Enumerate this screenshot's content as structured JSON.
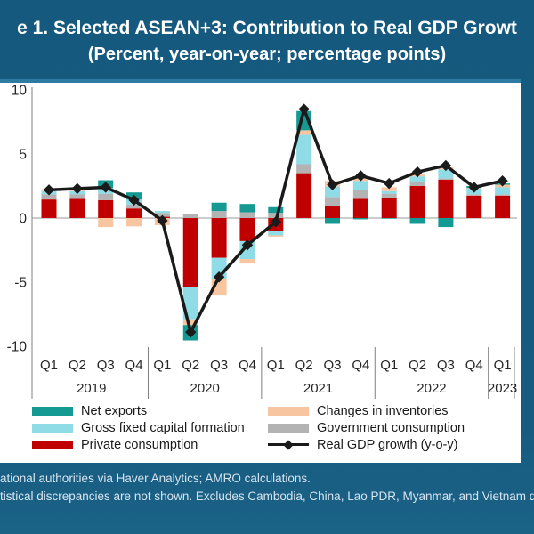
{
  "title": {
    "line1": "e 1. Selected ASEAN+3: Contribution to Real GDP Growt",
    "line2": "(Percent, year-on-year; percentage points)"
  },
  "footer": {
    "line1": "ational authorities via Haver Analytics; AMRO calculations.",
    "line2": "tistical discrepancies are not shown. Excludes Cambodia, China, Lao PDR, Myanmar, and Vietnam du"
  },
  "colors": {
    "slide_background": "#16597e",
    "panel_background": "#ffffff",
    "accent_line": "#2d7ba3",
    "private_consumption": "#c00000",
    "government_consumption": "#b3b3b3",
    "gross_fixed_capital_formation": "#8fdbe6",
    "changes_in_inventories": "#f7c5a0",
    "net_exports": "#159a93",
    "gdp_line": "#1a1a1a",
    "axis_text": "#262626",
    "footer_text": "#d6e4ee"
  },
  "chart_data": {
    "type": "bar",
    "subtype": "stacked-bars-with-line-overlay",
    "categories": [
      "Q1",
      "Q2",
      "Q3",
      "Q4",
      "Q1",
      "Q2",
      "Q3",
      "Q4",
      "Q1",
      "Q2",
      "Q3",
      "Q4",
      "Q1",
      "Q2",
      "Q3",
      "Q4",
      "Q1"
    ],
    "year_groups": [
      {
        "label": "2019",
        "start": 0,
        "end": 3
      },
      {
        "label": "2020",
        "start": 4,
        "end": 7
      },
      {
        "label": "2021",
        "start": 8,
        "end": 11
      },
      {
        "label": "2022",
        "start": 12,
        "end": 15
      },
      {
        "label": "2023",
        "start": 16,
        "end": 16
      }
    ],
    "ylim": [
      -10,
      10
    ],
    "yticks": [
      10,
      5,
      0,
      -5,
      -10
    ],
    "grid": false,
    "legend_position": "bottom",
    "series": [
      {
        "name": "Private consumption",
        "color": "#c00000",
        "values": [
          1.45,
          1.5,
          1.4,
          0.75,
          0.1,
          -5.4,
          -3.1,
          -1.8,
          -1.0,
          3.5,
          0.95,
          1.5,
          1.6,
          2.5,
          3.0,
          1.75,
          1.75
        ]
      },
      {
        "name": "Government consumption",
        "color": "#b3b3b3",
        "values": [
          0.4,
          0.35,
          0.5,
          0.3,
          0.3,
          0.3,
          0.55,
          0.45,
          0.4,
          0.7,
          0.7,
          0.7,
          0.3,
          0.3,
          0.1,
          0.1,
          0.1
        ]
      },
      {
        "name": "Gross fixed capital formation",
        "color": "#8fdbe6",
        "values": [
          0.25,
          0.25,
          0.45,
          0.4,
          0.15,
          -2.5,
          -1.65,
          -1.4,
          -0.35,
          2.3,
          0.8,
          0.7,
          0.2,
          0.45,
          0.7,
          0.45,
          0.55
        ]
      },
      {
        "name": "Changes in inventories",
        "color": "#f7c5a0",
        "values": [
          0.15,
          0.1,
          -0.7,
          -0.65,
          -0.55,
          -0.45,
          -1.3,
          -0.35,
          -0.1,
          0.35,
          0.45,
          0.3,
          0.3,
          0.15,
          0.15,
          0.05,
          0.2
        ]
      },
      {
        "name": "Net exports",
        "color": "#159a93",
        "values": [
          0.0,
          0.1,
          0.6,
          0.55,
          0.0,
          -1.2,
          0.65,
          0.65,
          0.45,
          1.5,
          -0.45,
          -0.1,
          -0.05,
          -0.45,
          -0.7,
          0.15,
          0.1
        ]
      }
    ],
    "line_series": {
      "name": "Real GDP growth (y-o-y)",
      "color": "#1a1a1a",
      "values": [
        2.2,
        2.3,
        2.4,
        1.4,
        -0.2,
        -8.9,
        -4.6,
        -2.1,
        -0.3,
        8.5,
        2.6,
        3.3,
        2.7,
        3.6,
        4.1,
        2.4,
        2.9
      ]
    },
    "legend": [
      {
        "label": "Net exports",
        "color": "#159a93",
        "type": "box"
      },
      {
        "label": "Gross fixed capital formation",
        "color": "#8fdbe6",
        "type": "box"
      },
      {
        "label": "Private consumption",
        "color": "#c00000",
        "type": "box"
      },
      {
        "label": "Changes in inventories",
        "color": "#f7c5a0",
        "type": "box"
      },
      {
        "label": "Government consumption",
        "color": "#b3b3b3",
        "type": "box"
      },
      {
        "label": "Real GDP growth (y-o-y)",
        "color": "#1a1a1a",
        "type": "line"
      }
    ]
  }
}
